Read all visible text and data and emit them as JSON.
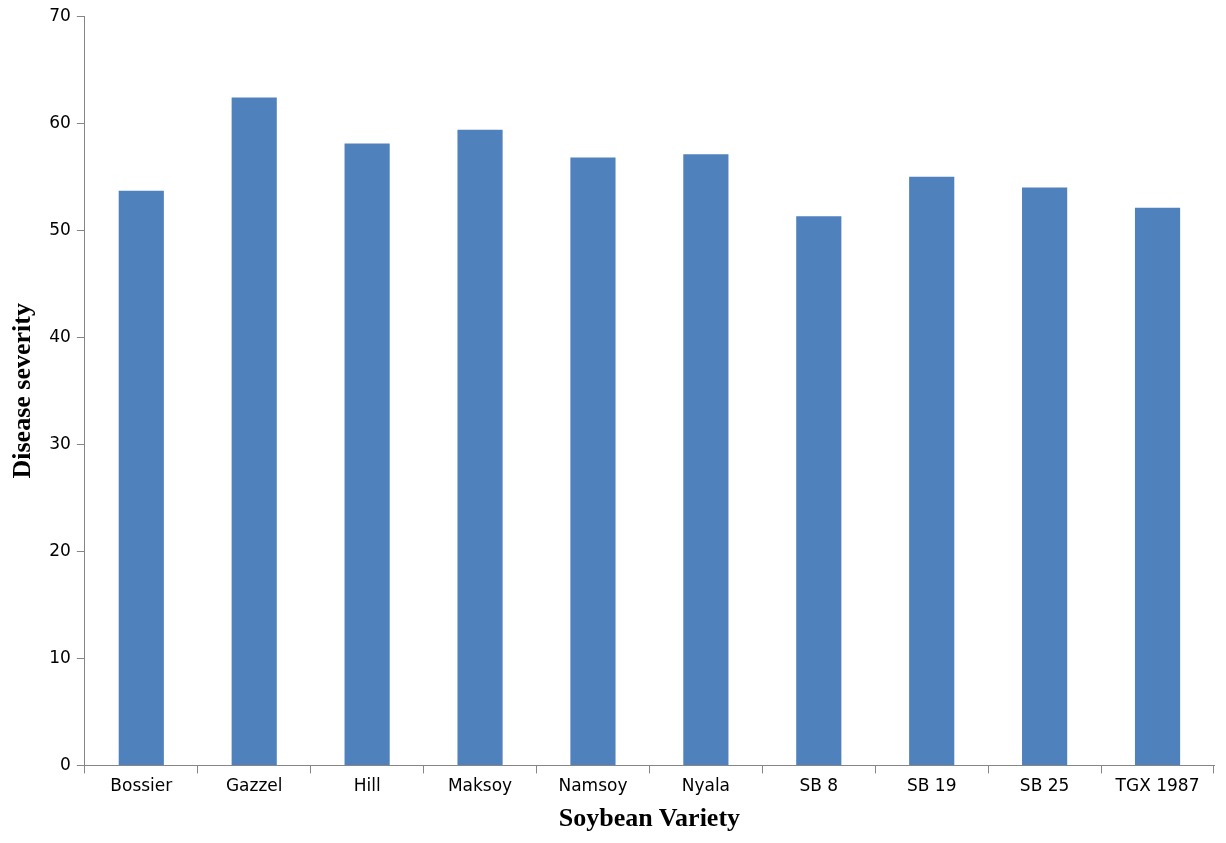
{
  "chart_data": {
    "type": "bar",
    "xlabel": "Soybean Variety",
    "ylabel": "Disease severity",
    "categories": [
      "Bossier",
      "Gazzel",
      "Hill",
      "Maksoy",
      "Namsoy",
      "Nyala",
      "SB 8",
      "SB 19",
      "SB 25",
      "TGX 1987"
    ],
    "values": [
      53.7,
      62.4,
      58.1,
      59.4,
      56.8,
      57.1,
      51.3,
      55.0,
      54.0,
      52.1
    ],
    "color": "#4f81bd",
    "ylim": [
      0,
      70
    ],
    "yticks": [
      0,
      10,
      20,
      30,
      40,
      50,
      60,
      70
    ],
    "grid": false,
    "legend": false
  }
}
